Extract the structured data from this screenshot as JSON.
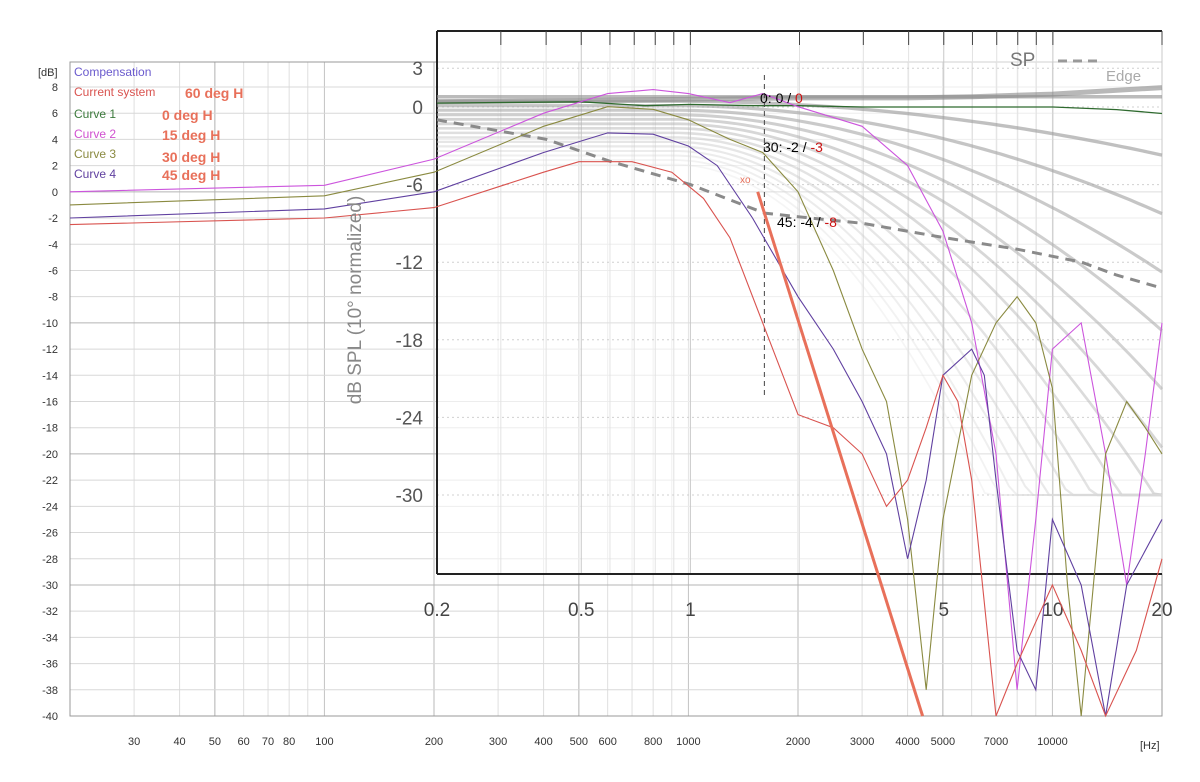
{
  "chart_data": [
    {
      "type": "line",
      "name": "outer",
      "y_unit": "[dB]",
      "x_unit": "[Hz]",
      "x_scale": "log",
      "xlim": [
        20,
        20000
      ],
      "ylim": [
        -40,
        8
      ],
      "y_ticks": [
        8,
        6,
        4,
        2,
        0,
        -2,
        -4,
        -6,
        -8,
        -10,
        -12,
        -14,
        -16,
        -18,
        -20,
        -22,
        -24,
        -26,
        -28,
        -30,
        -32,
        -34,
        -36,
        -38,
        -40
      ],
      "x_ticks": [
        {
          "v": 30,
          "l": "30"
        },
        {
          "v": 40,
          "l": "40"
        },
        {
          "v": 50,
          "l": "50"
        },
        {
          "v": 60,
          "l": "60"
        },
        {
          "v": 70,
          "l": "70"
        },
        {
          "v": 80,
          "l": "80"
        },
        {
          "v": 100,
          "l": "100"
        },
        {
          "v": 200,
          "l": "200"
        },
        {
          "v": 300,
          "l": "300"
        },
        {
          "v": 400,
          "l": "400"
        },
        {
          "v": 500,
          "l": "500"
        },
        {
          "v": 600,
          "l": "600"
        },
        {
          "v": 800,
          "l": "800"
        },
        {
          "v": 1000,
          "l": "1000"
        },
        {
          "v": 2000,
          "l": "2000"
        },
        {
          "v": 3000,
          "l": "3000"
        },
        {
          "v": 4000,
          "l": "4000"
        },
        {
          "v": 5000,
          "l": "5000"
        },
        {
          "v": 7000,
          "l": "7000"
        },
        {
          "v": 10000,
          "l": "10000"
        }
      ],
      "legend": [
        {
          "name": "Compensation",
          "color": "#6a5acd",
          "label": ""
        },
        {
          "name": "Current system",
          "color": "#d9534f",
          "label": "60 deg H"
        },
        {
          "name": "Curve 1",
          "color": "#3c7a3c",
          "label": "0 deg H"
        },
        {
          "name": "Curve 2",
          "color": "#d050d0",
          "label": "15 deg H"
        },
        {
          "name": "Curve 3",
          "color": "#8a8a40",
          "label": "30 deg H"
        },
        {
          "name": "Curve 4",
          "color": "#6040a0",
          "label": "45 deg H"
        }
      ],
      "series": [
        {
          "key": "curve2",
          "color": "#cc55dd",
          "points": [
            [
              20,
              0
            ],
            [
              100,
              0.5
            ],
            [
              200,
              2.5
            ],
            [
              400,
              6
            ],
            [
              600,
              7.5
            ],
            [
              800,
              7.8
            ],
            [
              1000,
              7.5
            ],
            [
              1300,
              6.8
            ],
            [
              1600,
              7.5
            ],
            [
              2000,
              6.5
            ],
            [
              3000,
              5
            ],
            [
              4000,
              2
            ],
            [
              5000,
              -3
            ],
            [
              6000,
              -10
            ],
            [
              7000,
              -20
            ],
            [
              8000,
              -38
            ],
            [
              9000,
              -25
            ],
            [
              10000,
              -12
            ],
            [
              12000,
              -10
            ],
            [
              14000,
              -20
            ],
            [
              16000,
              -30
            ],
            [
              18000,
              -20
            ],
            [
              20000,
              -10
            ]
          ]
        },
        {
          "key": "curve3",
          "color": "#8a8a40",
          "points": [
            [
              20,
              -1
            ],
            [
              100,
              -0.3
            ],
            [
              200,
              1.5
            ],
            [
              400,
              5
            ],
            [
              600,
              6.5
            ],
            [
              800,
              6.3
            ],
            [
              1000,
              5.5
            ],
            [
              1300,
              4
            ],
            [
              1600,
              3
            ],
            [
              2000,
              0
            ],
            [
              2500,
              -6
            ],
            [
              3000,
              -12
            ],
            [
              3500,
              -16
            ],
            [
              4000,
              -25
            ],
            [
              4500,
              -38
            ],
            [
              5000,
              -25
            ],
            [
              6000,
              -14
            ],
            [
              7000,
              -10
            ],
            [
              8000,
              -8
            ],
            [
              9000,
              -10
            ],
            [
              10000,
              -15
            ],
            [
              11000,
              -30
            ],
            [
              12000,
              -40
            ],
            [
              14000,
              -20
            ],
            [
              16000,
              -16
            ],
            [
              18000,
              -18
            ],
            [
              20000,
              -20
            ]
          ]
        },
        {
          "key": "curve4",
          "color": "#6040a0",
          "points": [
            [
              20,
              -2
            ],
            [
              100,
              -1.3
            ],
            [
              200,
              0
            ],
            [
              400,
              3
            ],
            [
              600,
              4.5
            ],
            [
              800,
              4.4
            ],
            [
              1000,
              3.5
            ],
            [
              1200,
              2
            ],
            [
              1500,
              -2
            ],
            [
              2000,
              -8
            ],
            [
              2500,
              -12
            ],
            [
              3000,
              -16
            ],
            [
              3500,
              -20
            ],
            [
              4000,
              -28
            ],
            [
              4500,
              -22
            ],
            [
              5000,
              -14
            ],
            [
              6000,
              -12
            ],
            [
              6500,
              -14
            ],
            [
              7000,
              -22
            ],
            [
              8000,
              -35
            ],
            [
              9000,
              -38
            ],
            [
              10000,
              -25
            ],
            [
              12000,
              -30
            ],
            [
              14000,
              -40
            ],
            [
              16000,
              -30
            ],
            [
              20000,
              -25
            ]
          ]
        },
        {
          "key": "current",
          "color": "#d9534f",
          "points": [
            [
              20,
              -2.5
            ],
            [
              100,
              -2
            ],
            [
              200,
              -1.2
            ],
            [
              400,
              1.5
            ],
            [
              500,
              2.3
            ],
            [
              700,
              2.3
            ],
            [
              900,
              1.5
            ],
            [
              1100,
              -0.5
            ],
            [
              1300,
              -3.5
            ],
            [
              1600,
              -10
            ],
            [
              2000,
              -17
            ],
            [
              2500,
              -18
            ],
            [
              3000,
              -20
            ],
            [
              3500,
              -24
            ],
            [
              4000,
              -22
            ],
            [
              4500,
              -18
            ],
            [
              5000,
              -14
            ],
            [
              5500,
              -16
            ],
            [
              6000,
              -22
            ],
            [
              7000,
              -40
            ],
            [
              8000,
              -36
            ],
            [
              10000,
              -30
            ],
            [
              12000,
              -35
            ],
            [
              14000,
              -40
            ],
            [
              17000,
              -35
            ],
            [
              20000,
              -28
            ]
          ]
        },
        {
          "key": "slope",
          "color": "#e8705a",
          "points": [
            [
              1550,
              0
            ],
            [
              4400,
              -40
            ]
          ]
        }
      ]
    },
    {
      "type": "line",
      "name": "inner",
      "ylabel": "dB SPL (10° normalized)",
      "x_scale": "log",
      "xlim": [
        0.2,
        20
      ],
      "ylim": [
        -36,
        6
      ],
      "y_ticks": [
        3,
        0,
        -6,
        -12,
        -18,
        -24,
        -30
      ],
      "x_ticks": [
        {
          "v": 0.2,
          "l": "0.2"
        },
        {
          "v": 0.5,
          "l": "0.5"
        },
        {
          "v": 1,
          "l": "1"
        },
        {
          "v": 5,
          "l": "5"
        },
        {
          "v": 10,
          "l": "10"
        },
        {
          "v": 20,
          "l": "20"
        }
      ],
      "legend_text": [
        "SP",
        "Edge"
      ],
      "annotations": [
        {
          "x": 1.6,
          "y": 0.2,
          "text": "0: 0 / ",
          "red": "0"
        },
        {
          "x": 1.6,
          "y": -3,
          "text": "30: -2 / ",
          "red": "-3"
        },
        {
          "x": 1.9,
          "y": -9,
          "text": "45: -4 / ",
          "red": "-8"
        }
      ],
      "crossover_label": "xo",
      "sp_curve": [
        [
          0.2,
          -1
        ],
        [
          0.4,
          -2.5
        ],
        [
          0.6,
          -4.2
        ],
        [
          1,
          -6
        ],
        [
          1.6,
          -8.2
        ],
        [
          2,
          -8.5
        ],
        [
          3,
          -9
        ],
        [
          5,
          -10.1
        ],
        [
          8,
          -11
        ],
        [
          12,
          -12
        ],
        [
          15,
          -13
        ],
        [
          20,
          -14
        ]
      ],
      "curve1": [
        [
          0.2,
          0.3
        ],
        [
          0.5,
          0.4
        ],
        [
          0.75,
          0.1
        ],
        [
          1,
          0.2
        ],
        [
          1.5,
          0.1
        ],
        [
          2,
          0.1
        ],
        [
          3,
          0
        ],
        [
          5,
          0
        ],
        [
          10,
          0
        ],
        [
          15,
          -0.2
        ],
        [
          20,
          -0.5
        ]
      ],
      "edge_top": [
        [
          0.2,
          0.4
        ],
        [
          0.5,
          0.5
        ],
        [
          1,
          0.6
        ],
        [
          2,
          0.7
        ],
        [
          4,
          0.7
        ],
        [
          6,
          0.8
        ],
        [
          10,
          1
        ],
        [
          20,
          1.5
        ]
      ]
    }
  ]
}
